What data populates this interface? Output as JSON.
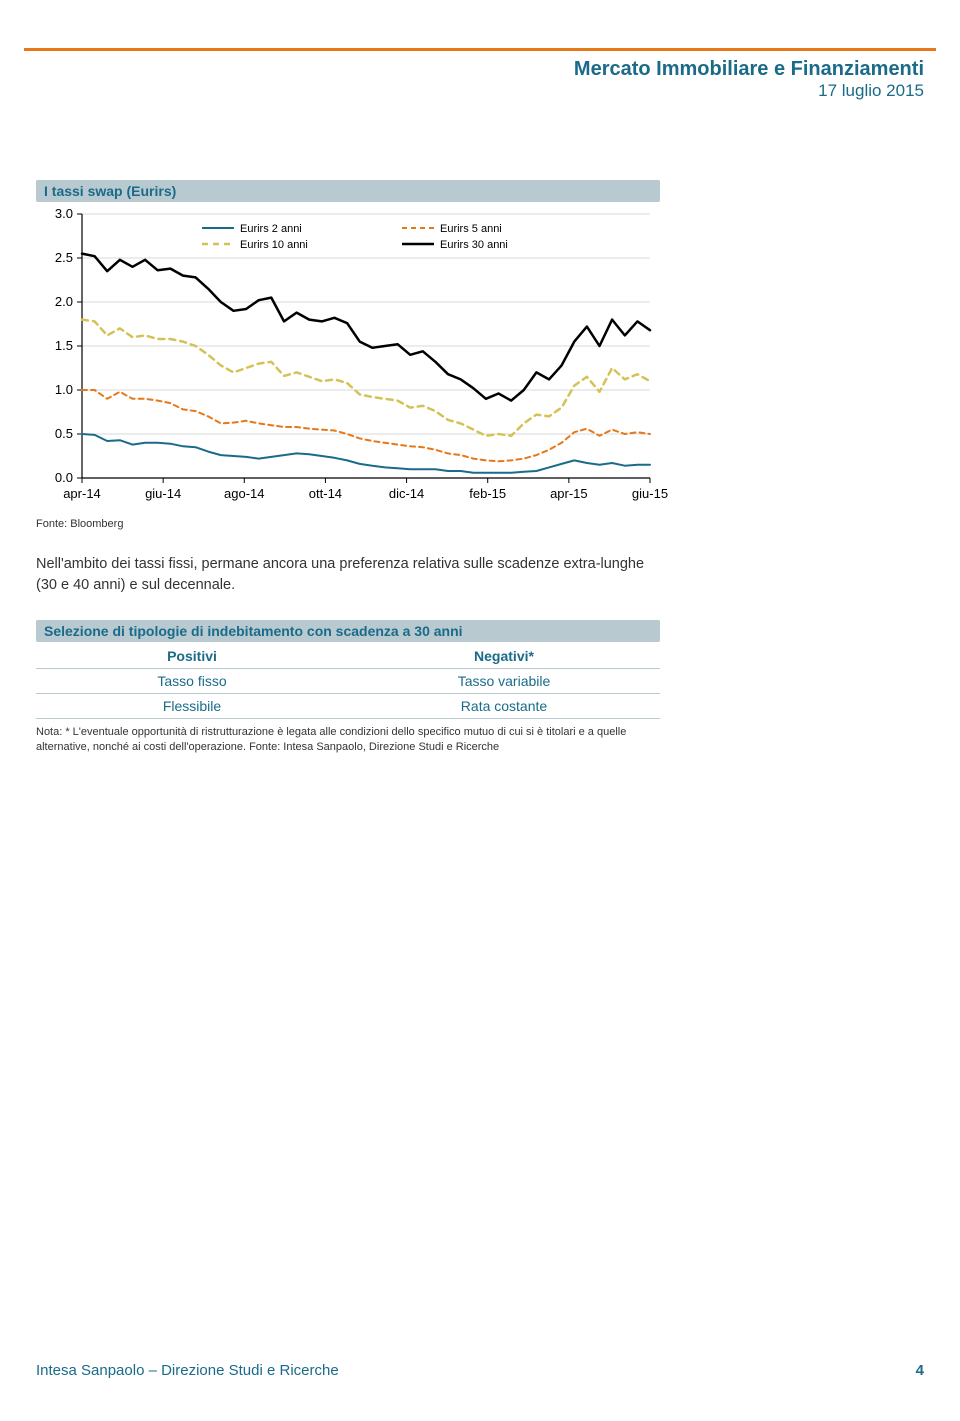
{
  "header": {
    "title": "Mercato Immobiliare e Finanziamenti",
    "date": "17 luglio 2015"
  },
  "chart": {
    "title": "I tassi swap (Eurirs)",
    "type": "line",
    "ylim": [
      0.0,
      3.0
    ],
    "ytick_step": 0.5,
    "yticks": [
      "0.0",
      "0.5",
      "1.0",
      "1.5",
      "2.0",
      "2.5",
      "3.0"
    ],
    "xticks": [
      "apr-14",
      "giu-14",
      "ago-14",
      "ott-14",
      "dic-14",
      "feb-15",
      "apr-15",
      "giu-15"
    ],
    "background_color": "#ffffff",
    "axis_color": "#000000",
    "grid_color": "#d9d9d9",
    "legend_fontsize": 11,
    "tick_fontsize": 13,
    "series": [
      {
        "name": "Eurirs 2 anni",
        "color": "#1a6b8a",
        "dash": "none",
        "width": 2,
        "values": [
          0.5,
          0.49,
          0.42,
          0.43,
          0.38,
          0.4,
          0.4,
          0.39,
          0.36,
          0.35,
          0.3,
          0.26,
          0.25,
          0.24,
          0.22,
          0.24,
          0.26,
          0.28,
          0.27,
          0.25,
          0.23,
          0.2,
          0.16,
          0.14,
          0.12,
          0.11,
          0.1,
          0.1,
          0.1,
          0.08,
          0.08,
          0.06,
          0.06,
          0.06,
          0.06,
          0.07,
          0.08,
          0.12,
          0.16,
          0.2,
          0.17,
          0.15,
          0.17,
          0.14,
          0.15,
          0.15
        ]
      },
      {
        "name": "Eurirs 5 anni",
        "color": "#e67817",
        "dash": "5,4",
        "width": 2,
        "values": [
          1.0,
          1.0,
          0.9,
          0.98,
          0.9,
          0.9,
          0.88,
          0.85,
          0.78,
          0.76,
          0.7,
          0.62,
          0.63,
          0.65,
          0.62,
          0.6,
          0.58,
          0.58,
          0.56,
          0.55,
          0.54,
          0.5,
          0.45,
          0.42,
          0.4,
          0.38,
          0.36,
          0.35,
          0.32,
          0.28,
          0.26,
          0.22,
          0.2,
          0.19,
          0.2,
          0.22,
          0.26,
          0.32,
          0.4,
          0.52,
          0.56,
          0.48,
          0.55,
          0.5,
          0.52,
          0.5
        ]
      },
      {
        "name": "Eurirs 10 anni",
        "color": "#d4c257",
        "dash": "6,5",
        "width": 2.5,
        "values": [
          1.8,
          1.78,
          1.62,
          1.7,
          1.6,
          1.62,
          1.58,
          1.58,
          1.55,
          1.5,
          1.4,
          1.28,
          1.2,
          1.25,
          1.3,
          1.32,
          1.16,
          1.2,
          1.15,
          1.1,
          1.12,
          1.08,
          0.95,
          0.92,
          0.9,
          0.88,
          0.8,
          0.82,
          0.76,
          0.66,
          0.62,
          0.55,
          0.48,
          0.5,
          0.48,
          0.62,
          0.72,
          0.7,
          0.8,
          1.05,
          1.15,
          0.98,
          1.25,
          1.12,
          1.18,
          1.1
        ]
      },
      {
        "name": "Eurirs 30 anni",
        "color": "#000000",
        "dash": "none",
        "width": 2.5,
        "values": [
          2.55,
          2.52,
          2.35,
          2.48,
          2.4,
          2.48,
          2.36,
          2.38,
          2.3,
          2.28,
          2.15,
          2.0,
          1.9,
          1.92,
          2.02,
          2.05,
          1.78,
          1.88,
          1.8,
          1.78,
          1.82,
          1.76,
          1.55,
          1.48,
          1.5,
          1.52,
          1.4,
          1.44,
          1.32,
          1.18,
          1.12,
          1.02,
          0.9,
          0.96,
          0.88,
          1.0,
          1.2,
          1.12,
          1.28,
          1.55,
          1.72,
          1.5,
          1.8,
          1.62,
          1.78,
          1.68
        ]
      }
    ],
    "source": "Fonte: Bloomberg"
  },
  "body_text": "Nell'ambito dei tassi fissi, permane ancora una preferenza relativa sulle scadenze extra-lunghe (30 e 40 anni) e sul decennale.",
  "selection_table": {
    "title": "Selezione di tipologie di indebitamento con scadenza a 30 anni",
    "headers": [
      "Positivi",
      "Negativi*"
    ],
    "rows": [
      [
        "Tasso fisso",
        "Tasso variabile"
      ],
      [
        "Flessibile",
        "Rata costante"
      ]
    ],
    "note": "Nota: * L'eventuale opportunità di ristrutturazione è legata alle condizioni dello specifico mutuo di cui si è titolari e a quelle alternative, nonché ai costi dell'operazione. Fonte: Intesa Sanpaolo, Direzione Studi e Ricerche"
  },
  "footer": {
    "left": "Intesa Sanpaolo – Direzione Studi e Ricerche",
    "page": "4"
  }
}
